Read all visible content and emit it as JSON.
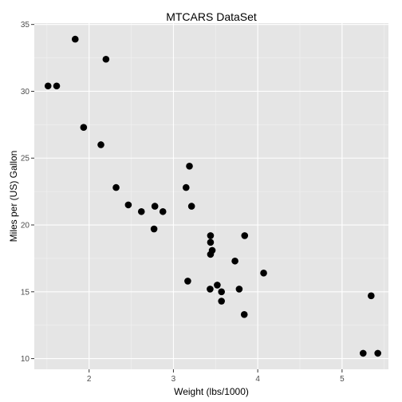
{
  "chart_data": {
    "type": "scatter",
    "title": "MTCARS DataSet",
    "xlabel": "Weight (lbs/1000)",
    "ylabel": "Miles per (US) Gallon",
    "xlim": [
      1.35,
      5.55
    ],
    "ylim": [
      9.2,
      35.1
    ],
    "xticks": [
      2,
      3,
      4,
      5
    ],
    "yticks": [
      10,
      15,
      20,
      25,
      30,
      35
    ],
    "xminor": [
      1.5,
      2.5,
      3.5,
      4.5,
      5.5
    ],
    "yminor": [
      12.5,
      17.5,
      22.5,
      27.5,
      32.5
    ],
    "grid": true,
    "point_color": "#000000",
    "panel_color": "#e5e5e5",
    "points": [
      {
        "x": 2.62,
        "y": 21.0
      },
      {
        "x": 2.875,
        "y": 21.0
      },
      {
        "x": 2.32,
        "y": 22.8
      },
      {
        "x": 3.215,
        "y": 21.4
      },
      {
        "x": 3.44,
        "y": 18.7
      },
      {
        "x": 3.46,
        "y": 18.1
      },
      {
        "x": 3.57,
        "y": 14.3
      },
      {
        "x": 3.19,
        "y": 24.4
      },
      {
        "x": 3.15,
        "y": 22.8
      },
      {
        "x": 3.44,
        "y": 19.2
      },
      {
        "x": 3.44,
        "y": 17.8
      },
      {
        "x": 4.07,
        "y": 16.4
      },
      {
        "x": 3.73,
        "y": 17.3
      },
      {
        "x": 3.78,
        "y": 15.2
      },
      {
        "x": 5.25,
        "y": 10.4
      },
      {
        "x": 5.424,
        "y": 10.4
      },
      {
        "x": 5.345,
        "y": 14.7
      },
      {
        "x": 2.2,
        "y": 32.4
      },
      {
        "x": 1.615,
        "y": 30.4
      },
      {
        "x": 1.835,
        "y": 33.9
      },
      {
        "x": 2.465,
        "y": 21.5
      },
      {
        "x": 3.52,
        "y": 15.5
      },
      {
        "x": 3.435,
        "y": 15.2
      },
      {
        "x": 3.84,
        "y": 13.3
      },
      {
        "x": 3.845,
        "y": 19.2
      },
      {
        "x": 1.935,
        "y": 27.3
      },
      {
        "x": 2.14,
        "y": 26.0
      },
      {
        "x": 1.513,
        "y": 30.4
      },
      {
        "x": 3.17,
        "y": 15.8
      },
      {
        "x": 2.77,
        "y": 19.7
      },
      {
        "x": 3.57,
        "y": 15.0
      },
      {
        "x": 2.78,
        "y": 21.4
      }
    ]
  }
}
